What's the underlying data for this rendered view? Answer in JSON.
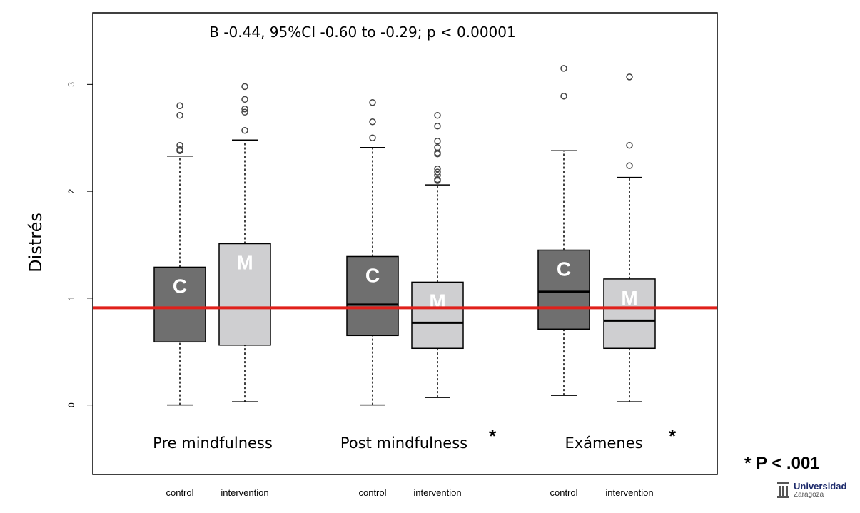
{
  "chart_data": {
    "type": "boxplot",
    "annotation": "B -0.44, 95%CI -0.60 to -0.29; p < 0.00001",
    "ylabel": "Distrés",
    "ylim": [
      -0.65,
      3.67
    ],
    "yticks": [
      "0",
      "1",
      "2",
      "3"
    ],
    "reference_line": {
      "value": 0.91,
      "color": "#e0201b"
    },
    "groups": [
      {
        "label": "Pre mindfulness",
        "star": ""
      },
      {
        "label": "Post mindfulness",
        "star": "*"
      },
      {
        "label": "Exámenes",
        "star": "*"
      }
    ],
    "boxes": [
      {
        "group": 0,
        "xlabel": "control",
        "letter": "C",
        "color": "#6f6f6f",
        "whisker_low": 0,
        "q1": 0.59,
        "median": 0.91,
        "q3": 1.29,
        "whisker_high": 2.33,
        "outliers": [
          2.8,
          2.71,
          2.43,
          2.39,
          2.38
        ]
      },
      {
        "group": 0,
        "xlabel": "intervention",
        "letter": "M",
        "color": "#cfcfd1",
        "whisker_low": 0.03,
        "q1": 0.56,
        "median": 0.91,
        "q3": 1.51,
        "whisker_high": 2.48,
        "outliers": [
          2.98,
          2.86,
          2.77,
          2.74,
          2.57
        ]
      },
      {
        "group": 1,
        "xlabel": "control",
        "letter": "C",
        "color": "#6f6f6f",
        "whisker_low": 0,
        "q1": 0.65,
        "median": 0.94,
        "q3": 1.39,
        "whisker_high": 2.41,
        "outliers": [
          2.83,
          2.65,
          2.5
        ]
      },
      {
        "group": 1,
        "xlabel": "intervention",
        "letter": "M",
        "color": "#cfcfd1",
        "whisker_low": 0.07,
        "q1": 0.53,
        "median": 0.77,
        "q3": 1.15,
        "whisker_high": 2.06,
        "outliers": [
          2.71,
          2.61,
          2.47,
          2.41,
          2.36,
          2.35,
          2.21,
          2.18,
          2.15,
          2.11,
          2.1
        ]
      },
      {
        "group": 2,
        "xlabel": "control",
        "letter": "C",
        "color": "#6f6f6f",
        "whisker_low": 0.09,
        "q1": 0.71,
        "median": 1.06,
        "q3": 1.45,
        "whisker_high": 2.38,
        "outliers": [
          3.15,
          2.89
        ]
      },
      {
        "group": 2,
        "xlabel": "intervention",
        "letter": "M",
        "color": "#cfcfd1",
        "whisker_low": 0.03,
        "q1": 0.53,
        "median": 0.79,
        "q3": 1.18,
        "whisker_high": 2.13,
        "outliers": [
          3.07,
          2.43,
          2.24
        ]
      }
    ]
  },
  "significance_note": "* P < .001",
  "logo": {
    "name": "Universidad",
    "sub": "Zaragoza"
  }
}
